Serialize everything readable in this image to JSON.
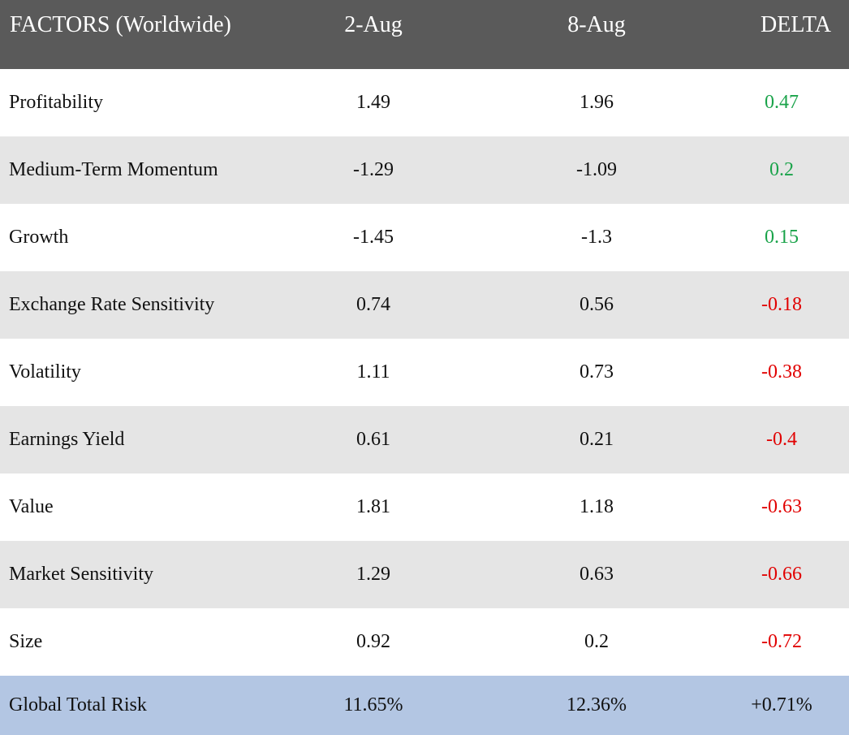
{
  "header": {
    "factor": "FACTORS (Worldwide)",
    "col_a": "2-Aug",
    "col_b": "8-Aug",
    "delta": "DELTA"
  },
  "rows": [
    {
      "factor": "Profitability",
      "a": "1.49",
      "b": "1.96",
      "delta": "0.47"
    },
    {
      "factor": "Medium-Term Momentum",
      "a": "-1.29",
      "b": "-1.09",
      "delta": "0.2"
    },
    {
      "factor": "Growth",
      "a": "-1.45",
      "b": "-1.3",
      "delta": "0.15"
    },
    {
      "factor": "Exchange Rate Sensitivity",
      "a": "0.74",
      "b": "0.56",
      "delta": "-0.18"
    },
    {
      "factor": "Volatility",
      "a": "1.11",
      "b": "0.73",
      "delta": "-0.38"
    },
    {
      "factor": "Earnings Yield",
      "a": "0.61",
      "b": "0.21",
      "delta": "-0.4"
    },
    {
      "factor": "Value",
      "a": "1.81",
      "b": "1.18",
      "delta": "-0.63"
    },
    {
      "factor": "Market Sensitivity",
      "a": "1.29",
      "b": "0.63",
      "delta": "-0.66"
    },
    {
      "factor": "Size",
      "a": "0.92",
      "b": "0.2",
      "delta": "-0.72"
    }
  ],
  "total": {
    "factor": "Global Total Risk",
    "a": "11.65%",
    "b": "12.36%",
    "delta": "+0.71%"
  },
  "colors": {
    "header_bg": "#5a5a5a",
    "alt_row_bg": "#e5e5e5",
    "total_row_bg": "#b3c6e3",
    "positive": "#1aa34a",
    "negative": "#e10000"
  }
}
